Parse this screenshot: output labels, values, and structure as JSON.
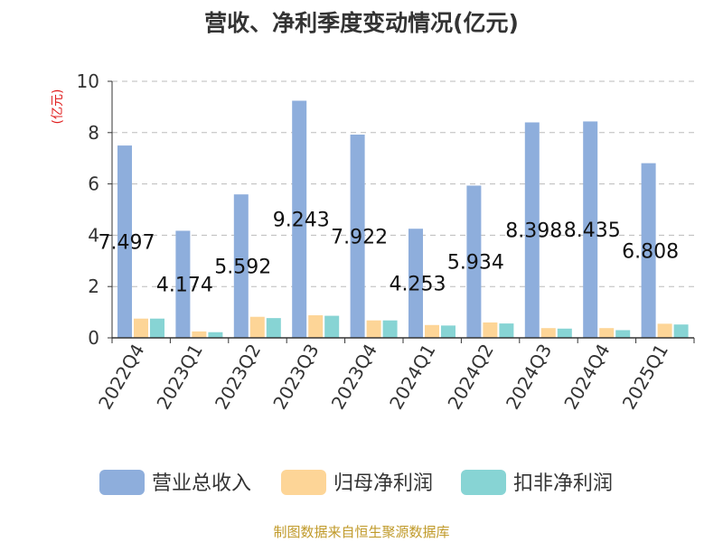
{
  "chart_data": {
    "type": "bar",
    "title": "营收、净利季度变动情况(亿元)",
    "ylabel": "(亿元)",
    "xlabel": "",
    "ylim": [
      0,
      10
    ],
    "yticks": [
      0,
      2,
      4,
      6,
      8,
      10
    ],
    "grid": true,
    "legend_position": "bottom",
    "categories": [
      "2022Q4",
      "2023Q1",
      "2023Q2",
      "2023Q3",
      "2023Q4",
      "2024Q1",
      "2024Q2",
      "2024Q3",
      "2024Q4",
      "2025Q1"
    ],
    "series": [
      {
        "name": "营业总收入",
        "color": "#8eaedc",
        "values": [
          7.497,
          4.174,
          5.592,
          9.243,
          7.922,
          4.253,
          5.934,
          8.398,
          8.435,
          6.808
        ],
        "labels": [
          "7.497",
          "4.174",
          "5.592",
          "9.243",
          "7.922",
          "4.253",
          "5.934",
          "8.398",
          "8.435",
          "6.808"
        ]
      },
      {
        "name": "归母净利润",
        "color": "#fdd597",
        "values": [
          0.75,
          0.25,
          0.82,
          0.88,
          0.68,
          0.5,
          0.6,
          0.38,
          0.38,
          0.55
        ]
      },
      {
        "name": "扣非净利润",
        "color": "#87d4d4",
        "values": [
          0.75,
          0.22,
          0.77,
          0.86,
          0.68,
          0.48,
          0.56,
          0.36,
          0.3,
          0.52
        ]
      }
    ]
  },
  "footer": "制图数据来自恒生聚源数据库"
}
